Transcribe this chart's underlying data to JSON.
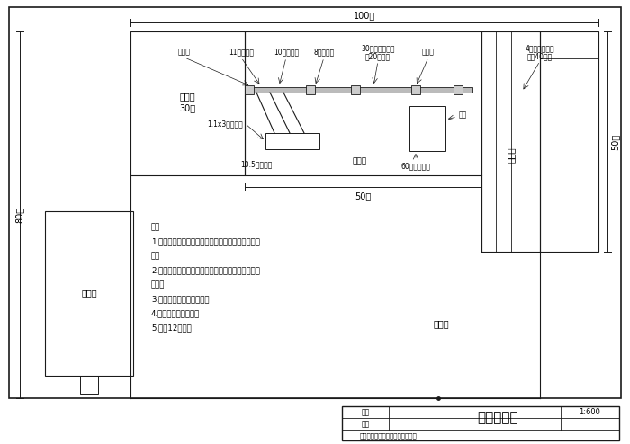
{
  "bg_color": "#ffffff",
  "line_color": "#1a1a1a",
  "title": "场地布局图",
  "scale": "1:600",
  "company": "鹤壁市人元生物技术发展有限公司",
  "zhi_tu": "制图",
  "jiao_he": "校核",
  "notes": [
    "注：",
    "1.成品区和设备区用普通钢构就可以，房顶要有透气",
    "孔。",
    "2.发酵车间最好是半敞墙有顶棚的，便于通风又不怕",
    "雨淋。",
    "3.原料区有无车间都可以。",
    "4.办公区客户自己定。",
    "5.共计12亩地。"
  ],
  "dim_100m": "100米",
  "dim_50m_h": "50米",
  "dim_80m": "80米",
  "dim_50m_v": "50米",
  "label_chengpin": "成品区",
  "label_30m": "30米",
  "label_shebei": "设备区",
  "label_fajiao": "发酵区",
  "label_yuanliao": "原料区",
  "label_bangong": "办公区",
  "eq_baozhuang": "包装机",
  "eq_11m": "11米皮带机",
  "eq_10m": "10米皮带机",
  "eq_8m": "8米皮带机",
  "eq_30m_a": "30米进料皮带机",
  "eq_30m_b": "前20米平行",
  "eq_yiwei": "移位车",
  "eq_4m_a": "4米整槽翻抛机",
  "eq_4m_b": "四槽40米长",
  "eq_gun": "1.1x3米滚筒筛",
  "eq_105": "10.5米皮带机",
  "eq_liaocang": "料仓",
  "eq_60": "60立式粉碎机"
}
